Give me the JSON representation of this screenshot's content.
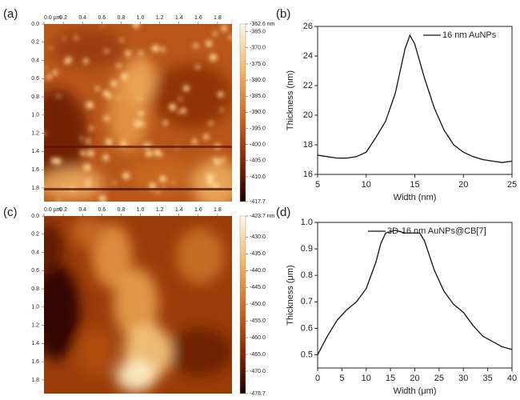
{
  "chart_data": [
    {
      "type": "heatmap",
      "panel": "(a)",
      "xlim": [
        0,
        1.95
      ],
      "ylim": [
        0,
        1.95
      ],
      "xticks": [
        {
          "value": 0,
          "label": "0.0 µm"
        },
        0.2,
        0.4,
        0.6,
        0.8,
        {
          "value": 1,
          "label": "1.0"
        },
        1.2,
        1.4,
        1.6,
        1.8
      ],
      "yticks": [
        {
          "value": 0,
          "label": "0.0"
        },
        0.2,
        0.4,
        0.6,
        0.8,
        {
          "value": 1,
          "label": "1.0"
        },
        1.2,
        1.4,
        1.6,
        1.8
      ],
      "clim": [
        -417.7,
        -362.6
      ],
      "cticks": [
        {
          "value": -362.6,
          "label": "-362.6 nm"
        },
        {
          "value": -365,
          "label": "-365.0"
        },
        {
          "value": -370,
          "label": "-370.0"
        },
        {
          "value": -375,
          "label": "-375.0"
        },
        {
          "value": -380,
          "label": "-380.0"
        },
        {
          "value": -385,
          "label": "-385.0"
        },
        {
          "value": -390,
          "label": "-390.0"
        },
        {
          "value": -395,
          "label": "-395.0"
        },
        {
          "value": -400,
          "label": "-400.0"
        },
        {
          "value": -405,
          "label": "-405.0"
        },
        {
          "value": -410,
          "label": "-410.0"
        },
        -417.7
      ]
    },
    {
      "type": "line",
      "panel": "(b)",
      "xlabel": "Width (nm)",
      "ylabel": "Thickness (nm)",
      "xlim": [
        5,
        25
      ],
      "ylim": [
        16,
        26
      ],
      "xticks": [
        5,
        10,
        15,
        20,
        25
      ],
      "yticks": [
        16,
        18,
        20,
        22,
        24,
        26
      ],
      "x": [
        5,
        6,
        7,
        8,
        9,
        10,
        11,
        12,
        13,
        14,
        14.5,
        15,
        16,
        17,
        18,
        19,
        20,
        21,
        22,
        23,
        24,
        25
      ],
      "series": [
        {
          "name": "16 nm AuNPs",
          "color": "#111111",
          "values": [
            17.3,
            17.2,
            17.1,
            17.1,
            17.2,
            17.5,
            18.5,
            19.6,
            21.5,
            24.5,
            25.4,
            24.8,
            22.5,
            20.5,
            19,
            18,
            17.5,
            17.2,
            17,
            16.9,
            16.8,
            16.9
          ]
        }
      ]
    },
    {
      "type": "heatmap",
      "panel": "(c)",
      "xlim": [
        0,
        1.95
      ],
      "ylim": [
        0,
        1.95
      ],
      "xticks": [
        {
          "value": 0,
          "label": "0.0 µm"
        },
        0.2,
        0.4,
        0.6,
        0.8,
        {
          "value": 1,
          "label": "1.0"
        },
        1.2,
        1.4,
        1.6,
        1.8
      ],
      "yticks": [
        {
          "value": 0,
          "label": "0.0"
        },
        0.2,
        0.4,
        0.6,
        0.8,
        {
          "value": 1,
          "label": "1.0"
        },
        1.2,
        1.4,
        1.6,
        1.8
      ],
      "clim": [
        -476.7,
        -423.7
      ],
      "cticks": [
        {
          "value": -423.7,
          "label": "-423.7 nm"
        },
        {
          "value": -430,
          "label": "-430.0"
        },
        {
          "value": -435,
          "label": "-435.0"
        },
        {
          "value": -440,
          "label": "-440.0"
        },
        {
          "value": -445,
          "label": "-445.0"
        },
        {
          "value": -450,
          "label": "-450.0"
        },
        {
          "value": -455,
          "label": "-455.0"
        },
        {
          "value": -460,
          "label": "-460.0"
        },
        {
          "value": -465,
          "label": "-465.0"
        },
        {
          "value": -470,
          "label": "-470.0"
        },
        -476.7
      ]
    },
    {
      "type": "line",
      "panel": "(d)",
      "xlabel": "Width (μm)",
      "ylabel": "Thickness (μm)",
      "xlim": [
        0,
        40
      ],
      "ylim": [
        0.45,
        1
      ],
      "xticks": [
        0,
        5,
        10,
        15,
        20,
        25,
        30,
        35,
        40
      ],
      "yticks": [
        0.5,
        0.6,
        0.7,
        0.8,
        0.9,
        {
          "value": 1,
          "label": "1.0"
        }
      ],
      "x": [
        0,
        2,
        4,
        6,
        8,
        10,
        12,
        13,
        14,
        16,
        18,
        20,
        21,
        22,
        24,
        26,
        28,
        30,
        32,
        34,
        36,
        38,
        40
      ],
      "series": [
        {
          "name": "3D-16 nm AuNPs@CB[7]",
          "color": "#111111",
          "values": [
            0.5,
            0.57,
            0.63,
            0.67,
            0.7,
            0.75,
            0.85,
            0.92,
            0.96,
            0.97,
            0.96,
            0.96,
            0.96,
            0.93,
            0.82,
            0.74,
            0.69,
            0.66,
            0.61,
            0.57,
            0.55,
            0.53,
            0.52
          ]
        }
      ]
    }
  ]
}
